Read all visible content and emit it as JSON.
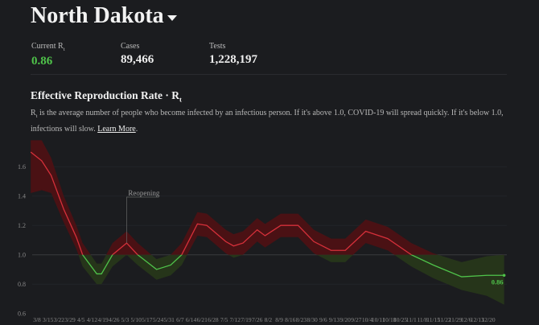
{
  "header": {
    "title": "North Dakota",
    "dropdown_icon": "caret-down-icon"
  },
  "stats": [
    {
      "label": "Current R",
      "label_sub": "t",
      "value": "0.86",
      "color": "#4fc34a"
    },
    {
      "label": "Cases",
      "value": "89,466"
    },
    {
      "label": "Tests",
      "value": "1,228,197"
    }
  ],
  "section": {
    "title": "Effective Reproduction Rate · R",
    "title_sub": "t",
    "desc_r": "R",
    "desc_sub": "t",
    "description": " is the average number of people who become infected by an infectious person. If it's above 1.0, COVID-19 will spread quickly. If it's below 1.0, infections will slow. ",
    "learn_more": "Learn More",
    "period": "."
  },
  "chart_data": {
    "type": "line",
    "title": "",
    "xlabel": "",
    "ylabel": "",
    "ylim": [
      0.6,
      1.8
    ],
    "yticks": [
      "1.6",
      "1.4",
      "1.2",
      "1.0",
      "0.8",
      "0.6"
    ],
    "xticks": [
      "3/8",
      "3/15",
      "3/22",
      "3/29",
      "4/5",
      "4/12",
      "4/19",
      "4/26",
      "5/3",
      "5/10",
      "5/17",
      "5/24",
      "5/31",
      "6/7",
      "6/14",
      "6/21",
      "6/28",
      "7/5",
      "7/12",
      "7/19",
      "7/26",
      "8/2",
      "8/9",
      "8/16",
      "8/23",
      "8/30",
      "9/6",
      "9/13",
      "9/20",
      "9/27",
      "10/4",
      "10/11",
      "10/18",
      "10/25",
      "11/1",
      "11/8",
      "11/15",
      "11/22",
      "11/29",
      "12/6",
      "12/13",
      "12/20"
    ],
    "threshold": 1.0,
    "colors": {
      "above": "#d6303a",
      "below": "#4fc34a",
      "above_band": "#4a1114",
      "below_band": "#26351a"
    },
    "annotation": {
      "label": "Reopening",
      "date": "5/4"
    },
    "end_label": "0.86",
    "x": [
      "3/4",
      "3/11",
      "3/17",
      "3/25",
      "4/2",
      "4/6",
      "4/15",
      "4/18",
      "4/25",
      "5/4",
      "5/11",
      "5/23",
      "6/1",
      "6/8",
      "6/18",
      "6/24",
      "7/6",
      "7/11",
      "7/17",
      "7/26",
      "7/31",
      "8/10",
      "8/21",
      "8/31",
      "9/11",
      "9/20",
      "10/3",
      "10/17",
      "11/1",
      "11/15",
      "12/3",
      "12/19",
      "12/30"
    ],
    "rt": [
      1.7,
      1.64,
      1.54,
      1.31,
      1.12,
      1.0,
      0.87,
      0.87,
      1.0,
      1.08,
      1.0,
      0.9,
      0.93,
      1.0,
      1.21,
      1.2,
      1.09,
      1.06,
      1.08,
      1.17,
      1.13,
      1.2,
      1.2,
      1.09,
      1.03,
      1.03,
      1.16,
      1.11,
      1.0,
      0.93,
      0.85,
      0.86,
      0.86
    ],
    "ci_lower": [
      1.42,
      1.44,
      1.42,
      1.22,
      1.04,
      0.92,
      0.8,
      0.8,
      0.92,
      1.0,
      0.93,
      0.83,
      0.86,
      0.93,
      1.13,
      1.12,
      1.01,
      0.98,
      1.0,
      1.09,
      1.05,
      1.12,
      1.12,
      1.01,
      0.95,
      0.95,
      1.08,
      1.03,
      0.92,
      0.84,
      0.76,
      0.72,
      0.66
    ],
    "ci_upper": [
      1.78,
      1.78,
      1.66,
      1.4,
      1.2,
      1.08,
      0.94,
      0.94,
      1.08,
      1.16,
      1.08,
      0.97,
      1.0,
      1.08,
      1.29,
      1.28,
      1.17,
      1.14,
      1.16,
      1.25,
      1.21,
      1.28,
      1.28,
      1.17,
      1.11,
      1.11,
      1.24,
      1.19,
      1.08,
      1.01,
      0.95,
      0.99,
      1.0
    ]
  }
}
